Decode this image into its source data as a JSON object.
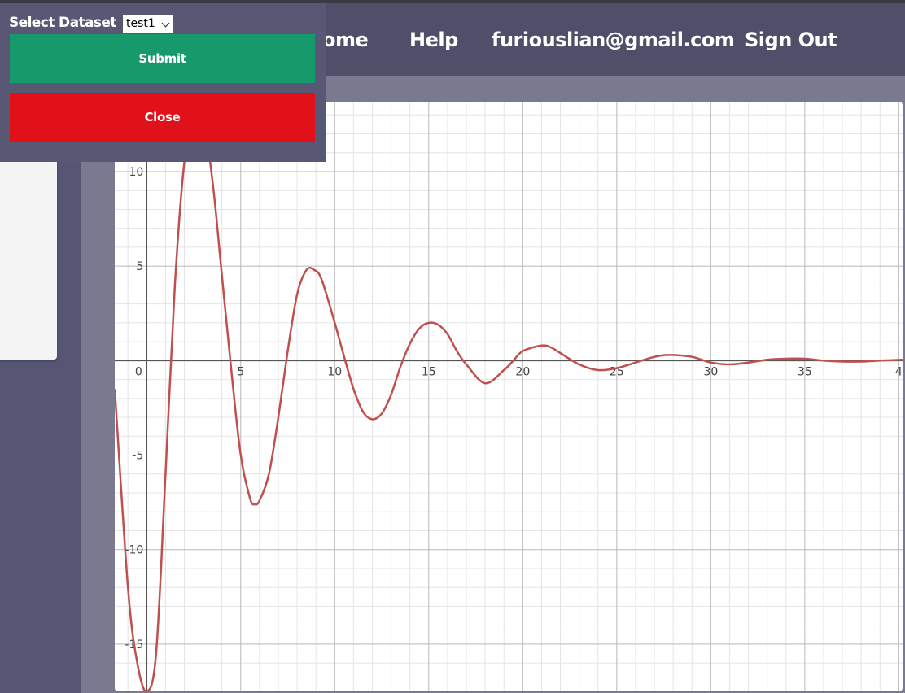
{
  "header": {
    "nav": {
      "home": "ome",
      "help": "Help",
      "email": "furiouslian@gmail.com",
      "sign_out": "Sign Out"
    }
  },
  "dataset_panel": {
    "label": "Select Dataset",
    "selected": "test1",
    "submit_label": "Submit",
    "close_label": "Close"
  },
  "colors": {
    "navbar": "#4f4f6a",
    "submit": "#169a6c",
    "close": "#e01119",
    "curve": "#c0504d"
  },
  "chart_data": {
    "type": "line",
    "title": "",
    "xlabel": "",
    "ylabel": "",
    "x_ticks": [
      "0",
      "5",
      "10",
      "15",
      "20",
      "25",
      "30",
      "35",
      "4"
    ],
    "y_ticks": [
      "10",
      "5",
      "-5",
      "-10",
      "-15"
    ],
    "xlim": [
      -1.7,
      40.2
    ],
    "ylim": [
      -17.5,
      13.7
    ],
    "grid": true,
    "series": [
      {
        "name": "",
        "x": [
          -1.7,
          -1.0,
          -0.5,
          0.0,
          0.5,
          1.0,
          1.5,
          2.0,
          2.5,
          2.9,
          3.5,
          4.0,
          4.5,
          5.0,
          5.5,
          5.75,
          6.0,
          6.5,
          7.0,
          7.5,
          8.0,
          8.5,
          8.9,
          9.3,
          10.0,
          10.5,
          11.0,
          11.5,
          12.0,
          12.5,
          13.0,
          13.5,
          14.0,
          14.5,
          15.0,
          15.5,
          16.0,
          16.5,
          17.0,
          18.0,
          19.0,
          19.5,
          20.0,
          21.0,
          21.5,
          22.0,
          23.0,
          24.0,
          25.0,
          26.0,
          27.0,
          27.8,
          29.0,
          30.0,
          31.0,
          32.0,
          33.0,
          34.0,
          35.0,
          36.0,
          37.0,
          38.0,
          39.0,
          40.2
        ],
        "y": [
          -1.5,
          -12.0,
          -16.0,
          -17.5,
          -15.5,
          -6.0,
          4.0,
          10.5,
          13.0,
          13.5,
          9.5,
          4.5,
          -0.5,
          -5.0,
          -7.3,
          -7.6,
          -7.4,
          -6.0,
          -3.0,
          0.5,
          3.5,
          4.8,
          4.8,
          4.3,
          2.0,
          0.2,
          -1.5,
          -2.7,
          -3.1,
          -2.8,
          -1.8,
          -0.3,
          0.9,
          1.7,
          2.0,
          1.9,
          1.4,
          0.5,
          -0.2,
          -1.2,
          -0.5,
          0.0,
          0.5,
          0.8,
          0.7,
          0.4,
          -0.2,
          -0.5,
          -0.4,
          -0.1,
          0.2,
          0.3,
          0.2,
          -0.1,
          -0.2,
          -0.1,
          0.05,
          0.1,
          0.1,
          0.0,
          -0.05,
          -0.05,
          0.0,
          0.05
        ]
      }
    ]
  }
}
